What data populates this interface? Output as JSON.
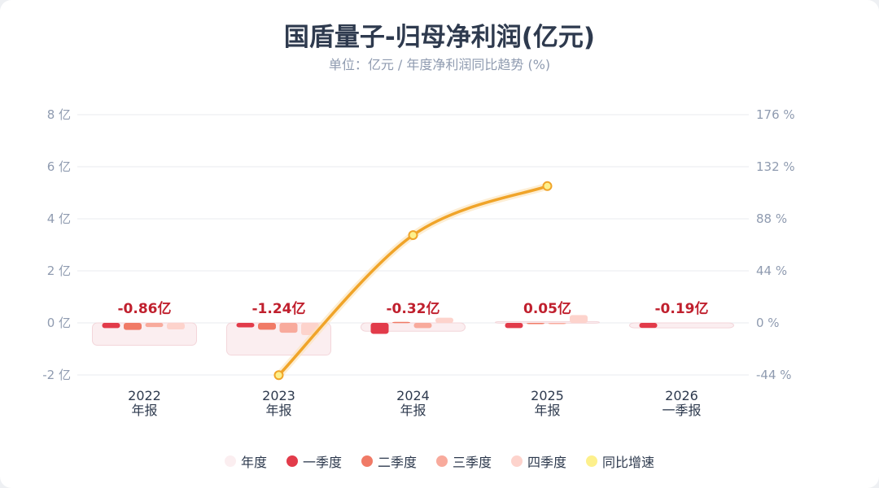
{
  "title": "国盾量子-归母净利润(亿元)",
  "subtitle": "单位：亿元 / 年度净利润同比趋势 (%)",
  "chart_data": {
    "type": "bar",
    "categories": [
      [
        "2022",
        "年报"
      ],
      [
        "2023",
        "年报"
      ],
      [
        "2024",
        "年报"
      ],
      [
        "2025",
        "年报"
      ],
      [
        "2026",
        "一季报"
      ]
    ],
    "left_axis": {
      "ylim": [
        -2,
        8
      ],
      "ticks": [
        -2,
        0,
        2,
        4,
        6,
        8
      ],
      "unit": "亿"
    },
    "right_axis": {
      "ylim": [
        -44,
        176
      ],
      "ticks": [
        -44,
        0,
        44,
        88,
        132,
        176
      ],
      "unit": "%"
    },
    "grid": true,
    "legend_position": "bottom",
    "annual": {
      "name": "年度",
      "values": [
        -0.86,
        -1.24,
        -0.32,
        0.05,
        -0.19
      ],
      "labels": [
        "-0.86亿",
        "-1.24亿",
        "-0.32亿",
        "0.05亿",
        "-0.19亿"
      ],
      "color": "#fbeef0"
    },
    "series": [
      {
        "name": "一季度",
        "values": [
          -0.2,
          -0.17,
          -0.42,
          -0.2,
          -0.19
        ],
        "color": "#e23b4a"
      },
      {
        "name": "二季度",
        "values": [
          -0.27,
          -0.26,
          0.04,
          -0.03,
          null
        ],
        "color": "#f07a66"
      },
      {
        "name": "三季度",
        "values": [
          -0.16,
          -0.38,
          -0.2,
          -0.03,
          null
        ],
        "color": "#f8aa9c"
      },
      {
        "name": "四季度",
        "values": [
          -0.25,
          -0.47,
          0.2,
          0.3,
          null
        ],
        "color": "#fdd3cc"
      }
    ],
    "line": {
      "name": "同比增速",
      "values": [
        null,
        -44.19,
        74.19,
        115.63,
        null
      ],
      "color": "#f0a429",
      "marker_color": "#fdf08c"
    }
  }
}
